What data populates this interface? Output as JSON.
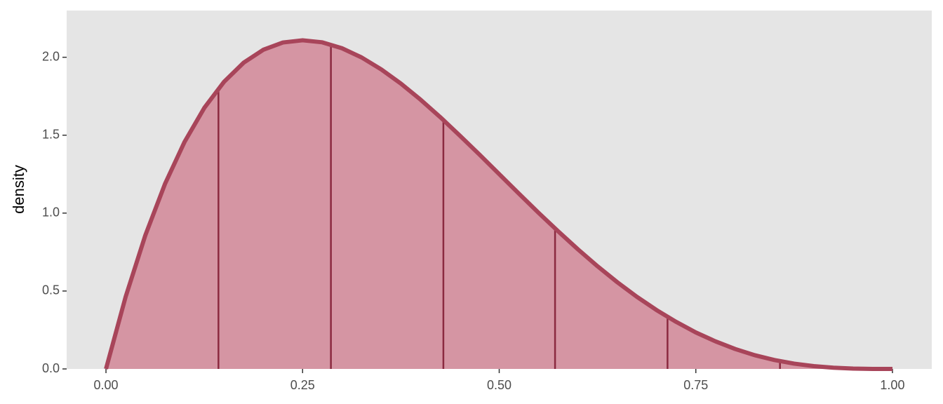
{
  "chart_data": {
    "type": "area",
    "y_label": "density",
    "x": [
      0,
      0.025,
      0.05,
      0.075,
      0.1,
      0.125,
      0.15,
      0.175,
      0.2,
      0.225,
      0.25,
      0.275,
      0.3,
      0.325,
      0.35,
      0.375,
      0.4,
      0.425,
      0.45,
      0.475,
      0.5,
      0.525,
      0.55,
      0.575,
      0.6,
      0.625,
      0.65,
      0.675,
      0.7,
      0.725,
      0.75,
      0.775,
      0.8,
      0.825,
      0.85,
      0.875,
      0.9,
      0.925,
      0.95,
      0.975,
      1.0
    ],
    "values": [
      0,
      0.463,
      0.857,
      1.187,
      1.458,
      1.675,
      1.842,
      1.965,
      2.048,
      2.095,
      2.109,
      2.096,
      2.058,
      1.999,
      1.922,
      1.831,
      1.728,
      1.616,
      1.497,
      1.375,
      1.25,
      1.125,
      1.002,
      0.883,
      0.768,
      0.659,
      0.557,
      0.463,
      0.378,
      0.302,
      0.234,
      0.177,
      0.128,
      0.088,
      0.057,
      0.034,
      0.018,
      0.008,
      0.002,
      0,
      0
    ],
    "color": "#a8455a",
    "fill": "#d595a3",
    "segments": {
      "color": "#8b2a40",
      "x": [
        0.143,
        0.286,
        0.429,
        0.571,
        0.714,
        0.857
      ],
      "values": [
        1.799,
        2.082,
        1.599,
        0.9,
        0.333,
        0.05
      ]
    },
    "xlim": [
      -0.05,
      1.05
    ],
    "ylim": [
      0,
      2.3
    ],
    "xticks": [
      {
        "value": 0,
        "label": "0.00"
      },
      0.25,
      {
        "value": 0.5,
        "label": "0.50"
      },
      0.75,
      {
        "value": 1,
        "label": "1.00"
      }
    ],
    "yticks": [
      {
        "value": 0,
        "label": "0.0"
      },
      0.5,
      {
        "value": 1,
        "label": "1.0"
      },
      1.5,
      {
        "value": 2,
        "label": "2.0"
      }
    ],
    "grid": false
  }
}
